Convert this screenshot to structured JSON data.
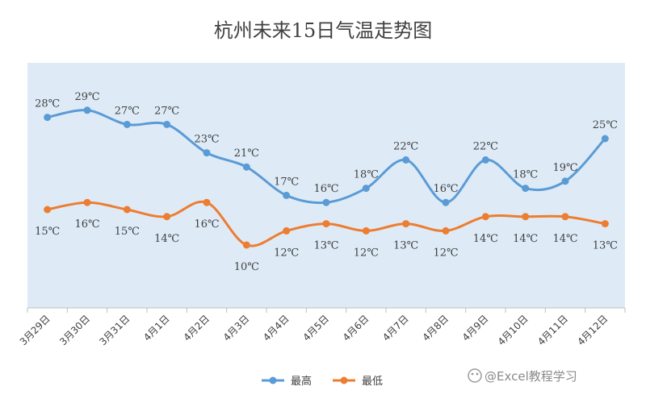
{
  "watermark": "@Excel教程学习",
  "chart_data": {
    "type": "line",
    "title": "杭州未来15日气温走势图",
    "xlabel": "",
    "ylabel": "",
    "ylim": [
      0,
      32
    ],
    "grid": false,
    "legend_position": "bottom",
    "categories": [
      "3月29日",
      "3月30日",
      "3月31日",
      "4月1日",
      "4月2日",
      "4月3日",
      "4月4日",
      "4月5日",
      "4月6日",
      "4月7日",
      "4月8日",
      "4月9日",
      "4月10日",
      "4月11日",
      "4月12日"
    ],
    "series": [
      {
        "name": "最高",
        "color": "#5b9bd5",
        "label_position": "above",
        "values": [
          28,
          29,
          27,
          27,
          23,
          21,
          17,
          16,
          18,
          22,
          16,
          22,
          18,
          19,
          25
        ],
        "labels": [
          "28℃",
          "29℃",
          "27℃",
          "27℃",
          "23℃",
          "21℃",
          "17℃",
          "16℃",
          "18℃",
          "22℃",
          "16℃",
          "22℃",
          "18℃",
          "19℃",
          "25℃"
        ]
      },
      {
        "name": "最低",
        "color": "#ed7d31",
        "label_position": "below",
        "values": [
          15,
          16,
          15,
          14,
          16,
          10,
          12,
          13,
          12,
          13,
          12,
          14,
          14,
          14,
          13
        ],
        "labels": [
          "15℃",
          "16℃",
          "15℃",
          "14℃",
          "16℃",
          "10℃",
          "12℃",
          "13℃",
          "12℃",
          "13℃",
          "12℃",
          "14℃",
          "14℃",
          "14℃",
          "13℃"
        ]
      }
    ]
  }
}
